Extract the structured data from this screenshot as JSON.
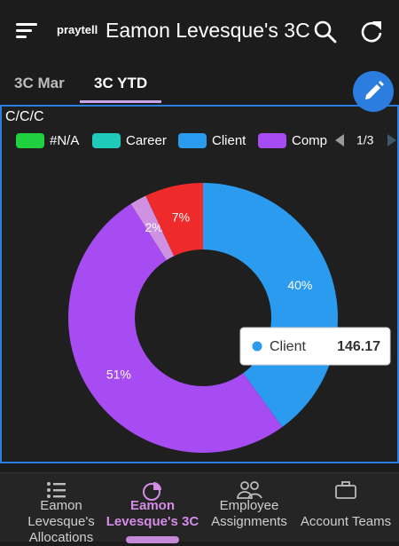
{
  "header": {
    "logo": "praytell",
    "title": "Eamon Levesque's 3C"
  },
  "tabs": [
    "3C Mar",
    "3C YTD"
  ],
  "chart_data": {
    "type": "pie",
    "title": "C/C/C",
    "legend": [
      {
        "name": "#N/A",
        "color": "#1fd13f"
      },
      {
        "name": "Career",
        "color": "#1ecbbb"
      },
      {
        "name": "Client",
        "color": "#2b9bf0"
      },
      {
        "name": "Comp",
        "color": "#a64cf2"
      }
    ],
    "legend_page": "1/3",
    "categories": [
      "Client",
      "Comp",
      null,
      null
    ],
    "values": [
      40,
      51,
      2,
      7
    ],
    "value_labels": [
      "40%",
      "51%",
      "2%",
      "7%"
    ],
    "colors": [
      "#2b9bf0",
      "#a64cf2",
      "#cf92e3",
      "#ee2a2a"
    ],
    "tooltip": {
      "label": "Client",
      "value": 146.17
    }
  },
  "nav": [
    "Eamon Levesque's Allocations",
    "Eamon Levesque's 3C",
    "Employee Assignments",
    "Account Teams"
  ]
}
